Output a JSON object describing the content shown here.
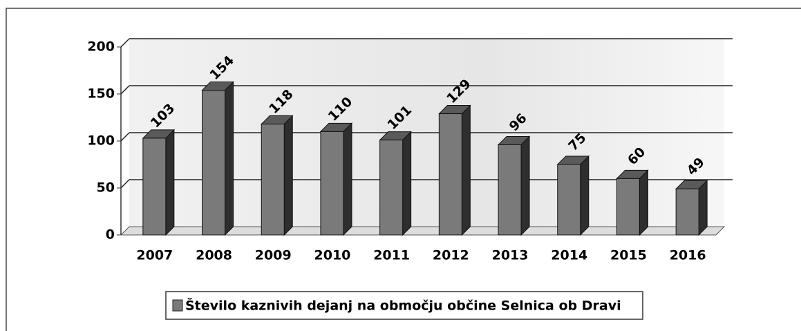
{
  "chart_data": {
    "type": "bar",
    "categories": [
      "2007",
      "2008",
      "2009",
      "2010",
      "2011",
      "2012",
      "2013",
      "2014",
      "2015",
      "2016"
    ],
    "series": [
      {
        "name": "Število kaznivih dejanj na območju občine Selnica ob Dravi",
        "color": "#7a7a7a",
        "values": [
          103,
          154,
          118,
          110,
          101,
          129,
          96,
          75,
          60,
          49
        ]
      }
    ],
    "ylim": [
      0,
      200
    ],
    "yticks": [
      0,
      50,
      100,
      150,
      200
    ],
    "grid": true,
    "legend": "bottom"
  }
}
